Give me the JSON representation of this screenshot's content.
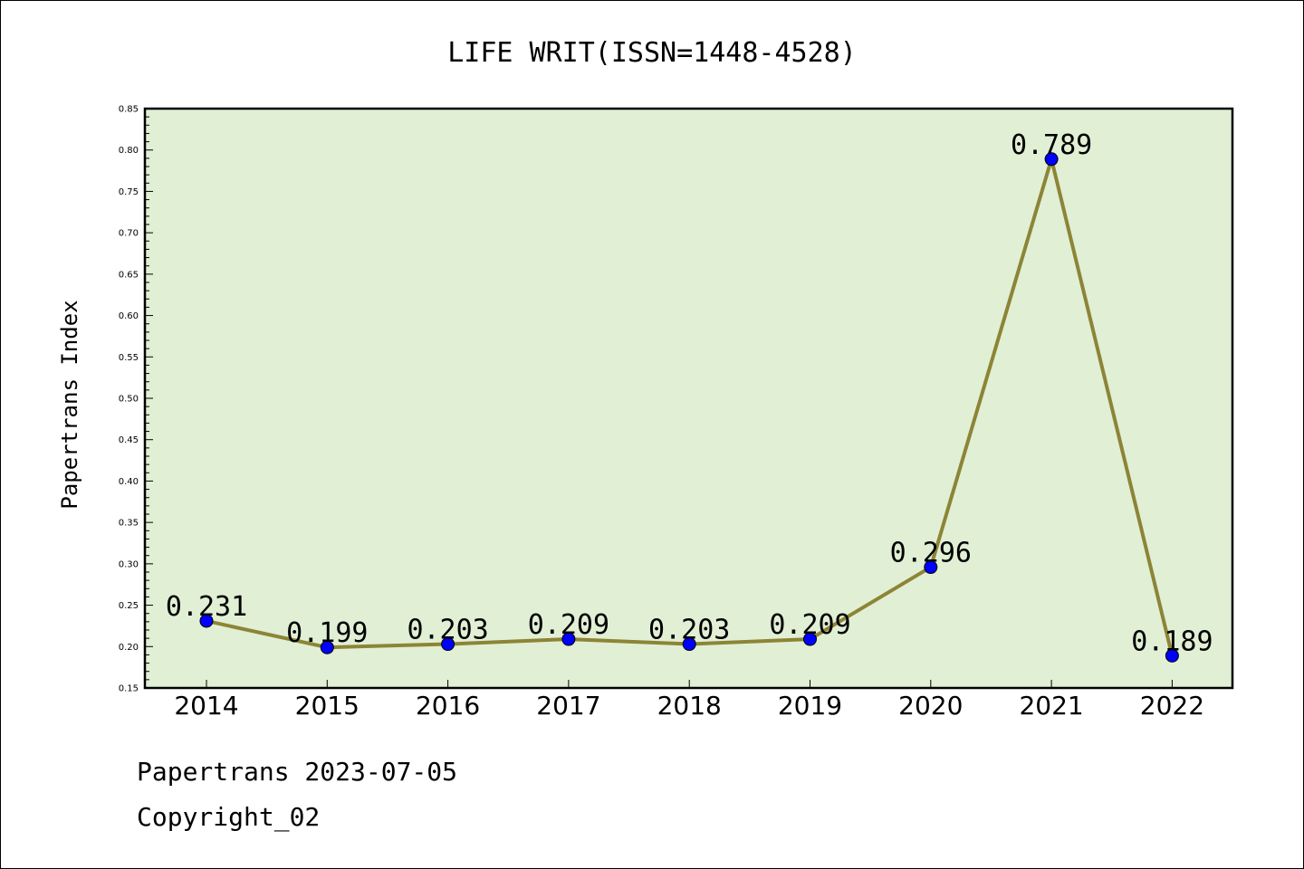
{
  "chart_data": {
    "type": "line",
    "title": "LIFE WRIT(ISSN=1448-4528)",
    "xlabel": "",
    "ylabel": "Papertrans Index",
    "categories": [
      "2014",
      "2015",
      "2016",
      "2017",
      "2018",
      "2019",
      "2020",
      "2021",
      "2022"
    ],
    "series": [
      {
        "values": [
          0.231,
          0.199,
          0.203,
          0.209,
          0.203,
          0.209,
          0.296,
          0.789,
          0.189
        ],
        "labels": [
          "0.231",
          "0.199",
          "0.203",
          "0.209",
          "0.203",
          "0.209",
          "0.296",
          "0.789",
          "0.189"
        ]
      }
    ],
    "ylim": [
      0.15,
      0.85
    ],
    "yticks": [
      "0.15",
      "0.20",
      "0.25",
      "0.30",
      "0.35",
      "0.40",
      "0.45",
      "0.50",
      "0.55",
      "0.60",
      "0.65",
      "0.70",
      "0.75",
      "0.80",
      "0.85"
    ],
    "grid": false,
    "legend": "none",
    "colors": {
      "plot_background": "#e1efd5",
      "line": "#8c8536",
      "marker": "#0000ff"
    }
  },
  "footer": {
    "line1": "Papertrans 2023-07-05",
    "line2": "Copyright_02"
  }
}
